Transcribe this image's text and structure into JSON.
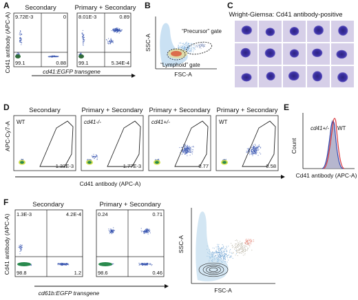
{
  "panels": {
    "A": {
      "label": "A",
      "plots": [
        {
          "title": "Secondary",
          "q_tl": "9.72E-3",
          "q_tr": "0",
          "q_bl": "99.1",
          "q_br": "0.88"
        },
        {
          "title": "Primary + Secondary",
          "q_tl": "8.01E-3",
          "q_tr": "0.89",
          "q_bl": "99.1",
          "q_br": "5.34E-4"
        }
      ],
      "ylabel": "Cd41 antibody (APC-A)",
      "xlabel": "cd41:EGFP transgene"
    },
    "B": {
      "label": "B",
      "ylabel": "SSC-A",
      "xlabel": "FSC-A",
      "gate_precursor": "“Precursor” gate",
      "gate_lymphoid": "“Lymphoid” gate"
    },
    "C": {
      "label": "C",
      "title": "Wright-Giemsa: Cd41 antibody-positive"
    },
    "D": {
      "label": "D",
      "ylabel": "APC-Cy7-A",
      "xlabel": "Cd41 antibody (APC-A)",
      "plots": [
        {
          "title": "Secondary",
          "genotype": "WT",
          "value": "1.33E-3"
        },
        {
          "title": "Primary + Secondary",
          "genotype": "cd41-/-",
          "value": "1.77E-3"
        },
        {
          "title": "Primary + Secondary",
          "genotype": "cd41+/-",
          "value": "0.77"
        },
        {
          "title": "Primary + Secondary",
          "genotype": "WT",
          "value": "0.58"
        }
      ]
    },
    "E": {
      "label": "E",
      "ylabel": "Count",
      "xlabel": "Cd41 antibody (APC-A)",
      "legend_het": "cd41+/-",
      "legend_wt": "WT"
    },
    "F": {
      "label": "F",
      "ylabel": "Cd41 antibody (APC-A)",
      "xlabel": "cd61b:EGFP transgene",
      "plots": [
        {
          "title": "Secondary",
          "q_tl": "1.3E-3",
          "q_tr": "4.2E-4",
          "q_bl": "98.8",
          "q_br": "1.2"
        },
        {
          "title": "Primary + Secondary",
          "q_tl": "0.24",
          "q_tr": "0.71",
          "q_bl": "98.6",
          "q_br": "0.46"
        }
      ],
      "ylabel2": "SSC-A",
      "xlabel2": "FSC-A"
    }
  },
  "colors": {
    "dots": "#3a56b0",
    "stain": "#3b2f9a",
    "cell_bg": "#d6cfe8",
    "wt_line": "#d8343a",
    "het_line": "#2a3ea8"
  }
}
